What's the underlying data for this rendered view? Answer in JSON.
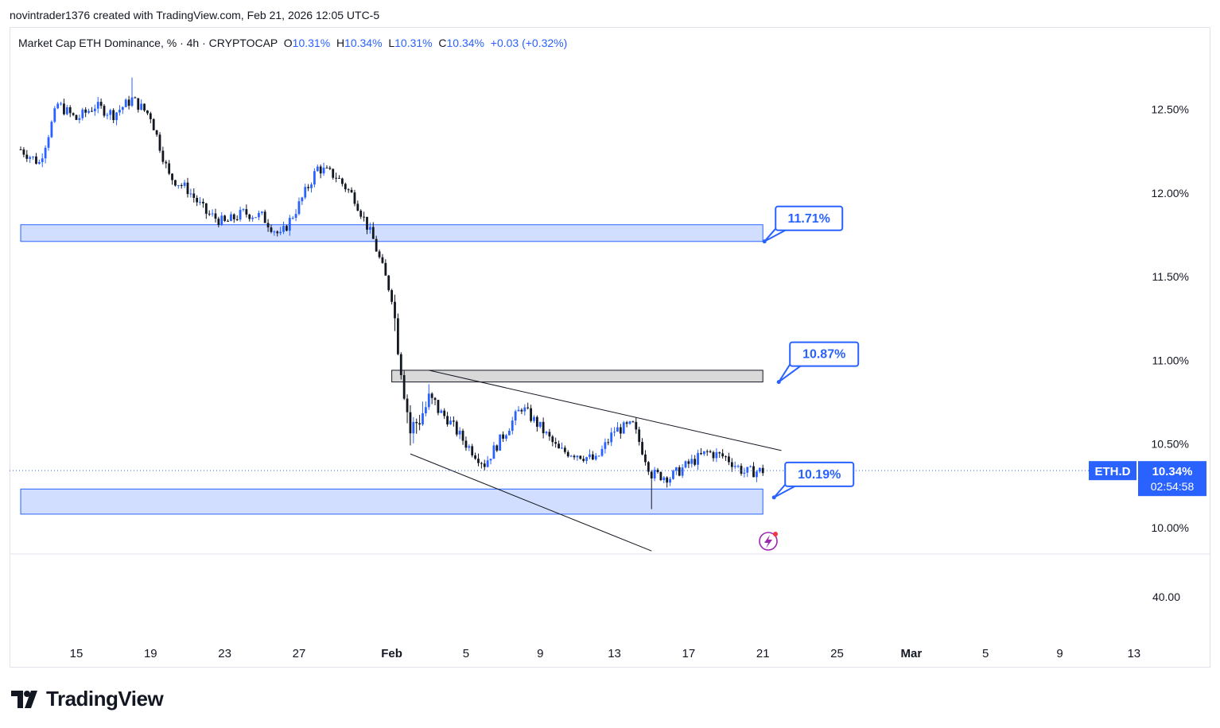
{
  "header": {
    "credit": "novintrader1376 created with TradingView.com, Feb 21, 2026 12:05 UTC-5"
  },
  "legend": {
    "title": "Market Cap ETH Dominance, % · 4h · CRYPTOCAP",
    "o_label": "O",
    "o_value": "10.31%",
    "h_label": "H",
    "h_value": "10.34%",
    "l_label": "L",
    "l_value": "10.31%",
    "c_label": "C",
    "c_value": "10.34%",
    "change": "+0.03 (+0.32%)"
  },
  "brand": {
    "name": "TradingView",
    "icon": "tradingview-logo-icon"
  },
  "chart_data": {
    "type": "candlestick",
    "symbol": "ETH.D",
    "last_price": "10.34%",
    "countdown": "02:54:58",
    "y_ticks": [
      "12.50%",
      "12.00%",
      "11.50%",
      "11.00%",
      "10.50%",
      "10.00%"
    ],
    "y_tick_values": [
      12.5,
      12.0,
      11.5,
      11.0,
      10.5,
      10.0
    ],
    "lower_pane_tick": "40.00",
    "x_ticks": [
      "15",
      "19",
      "23",
      "27",
      "Feb",
      "5",
      "9",
      "13",
      "17",
      "21",
      "25",
      "Mar",
      "5",
      "9",
      "13"
    ],
    "x_tick_dates": [
      "2026-01-15",
      "2026-01-19",
      "2026-01-23",
      "2026-01-27",
      "2026-02-01",
      "2026-02-05",
      "2026-02-09",
      "2026-02-13",
      "2026-02-17",
      "2026-02-21",
      "2026-02-25",
      "2026-03-01",
      "2026-03-05",
      "2026-03-09",
      "2026-03-13"
    ],
    "ylim": [
      9.84,
      12.98
    ],
    "close_path": [
      [
        "2026-01-12",
        12.26
      ],
      [
        "2026-01-13",
        12.18
      ],
      [
        "2026-01-14",
        12.53
      ],
      [
        "2026-01-15",
        12.44
      ],
      [
        "2026-01-16",
        12.52
      ],
      [
        "2026-01-17",
        12.47
      ],
      [
        "2026-01-18",
        12.56
      ],
      [
        "2026-01-19",
        12.46
      ],
      [
        "2026-01-20",
        12.1
      ],
      [
        "2026-01-21",
        12.02
      ],
      [
        "2026-01-22",
        11.88
      ],
      [
        "2026-01-23",
        11.82
      ],
      [
        "2026-01-24",
        11.88
      ],
      [
        "2026-01-25",
        11.86
      ],
      [
        "2026-01-26",
        11.74
      ],
      [
        "2026-01-27",
        11.93
      ],
      [
        "2026-01-28",
        12.15
      ],
      [
        "2026-01-29",
        12.1
      ],
      [
        "2026-01-30",
        11.97
      ],
      [
        "2026-01-31",
        11.72
      ],
      [
        "2026-02-01",
        11.38
      ],
      [
        "2026-02-02",
        10.57
      ],
      [
        "2026-02-03",
        10.75
      ],
      [
        "2026-02-04",
        10.65
      ],
      [
        "2026-02-05",
        10.5
      ],
      [
        "2026-02-06",
        10.38
      ],
      [
        "2026-02-07",
        10.55
      ],
      [
        "2026-02-08",
        10.72
      ],
      [
        "2026-02-09",
        10.6
      ],
      [
        "2026-02-10",
        10.46
      ],
      [
        "2026-02-11",
        10.44
      ],
      [
        "2026-02-12",
        10.4
      ],
      [
        "2026-02-13",
        10.58
      ],
      [
        "2026-02-14",
        10.61
      ],
      [
        "2026-02-15",
        10.32
      ],
      [
        "2026-02-16",
        10.3
      ],
      [
        "2026-02-17",
        10.38
      ],
      [
        "2026-02-18",
        10.45
      ],
      [
        "2026-02-19",
        10.42
      ],
      [
        "2026-02-20",
        10.33
      ],
      [
        "2026-02-21",
        10.34
      ]
    ],
    "highlights": {
      "swing_high": [
        "2026-01-18",
        12.69
      ],
      "spike_low": [
        "2026-02-15",
        10.11
      ]
    },
    "zones": [
      {
        "name": "resistance-zone-upper",
        "from": "2026-01-12",
        "to": "2026-02-21",
        "y_low": 11.71,
        "y_high": 11.81,
        "color": "#d1deff",
        "label": "11.71%"
      },
      {
        "name": "resistance-zone-mid",
        "from": "2026-02-01",
        "to": "2026-02-21",
        "y_low": 10.87,
        "y_high": 10.94,
        "color": "#d9d9d9",
        "label": "10.87%"
      },
      {
        "name": "support-zone",
        "from": "2026-01-12",
        "to": "2026-02-21",
        "y_low": 10.08,
        "y_high": 10.23,
        "color": "#d1deff",
        "label": "10.19%"
      }
    ],
    "trendlines": [
      {
        "name": "upper-trendline",
        "from": [
          "2026-02-03",
          10.94
        ],
        "to": [
          "2026-02-22",
          10.46
        ]
      },
      {
        "name": "lower-trendline",
        "from": [
          "2026-02-02",
          10.44
        ],
        "to": [
          "2026-02-15",
          9.86
        ]
      }
    ],
    "colors": {
      "up": "#2962ff",
      "down": "#131722",
      "accent": "#2962ff",
      "zone_blue": "#d1deff",
      "zone_gray": "#d9d9d9"
    }
  }
}
